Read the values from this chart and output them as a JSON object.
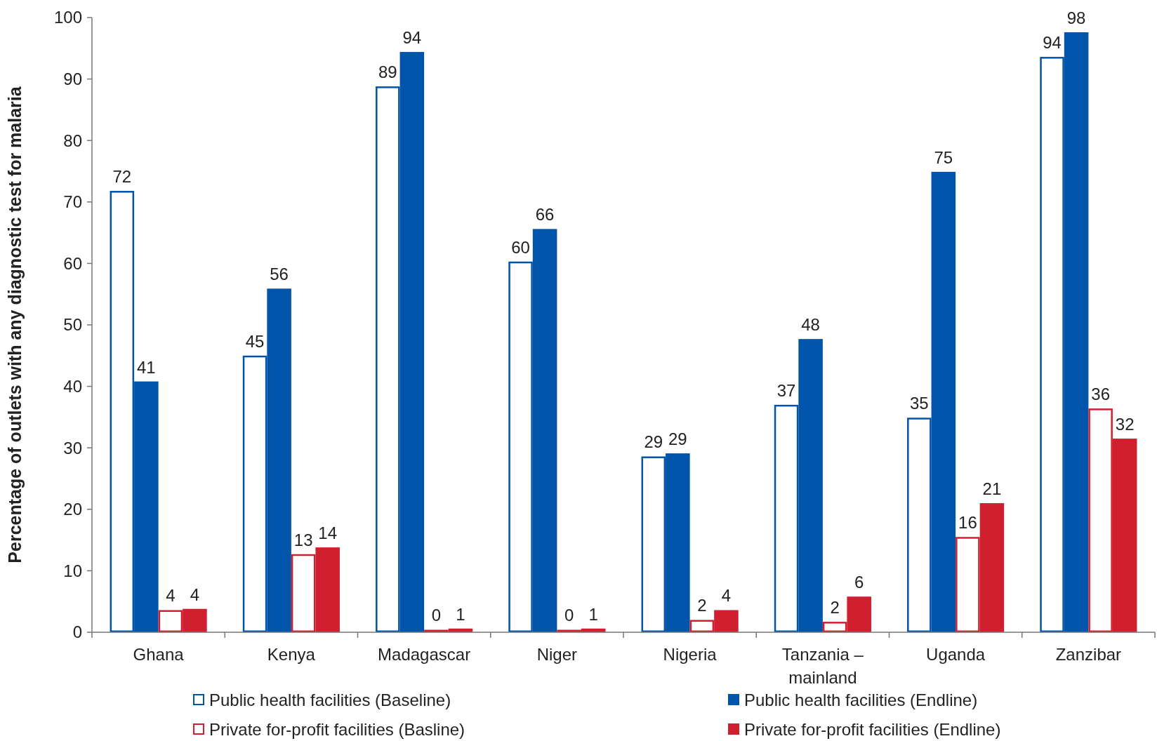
{
  "chart_data": {
    "type": "bar",
    "ylabel": "Percentage of outlets with any diagnostic test for malaria",
    "categories": [
      "Ghana",
      "Kenya",
      "Madagascar",
      "Niger",
      "Nigeria",
      "Tanzania – mainland",
      "Uganda",
      "Zanzibar"
    ],
    "series": [
      {
        "name": "Public health facilities (Baseline)",
        "color": "#0055aa",
        "values": [
          71.8,
          45.0,
          88.8,
          60.3,
          28.6,
          37.0,
          34.9,
          93.6
        ],
        "value_labels": [
          "72",
          "45",
          "89",
          "60",
          "29",
          "37",
          "35",
          "94"
        ]
      },
      {
        "name": "Public health facilities (Endline)",
        "color": "#0055aa",
        "values": [
          40.8,
          55.9,
          94.4,
          65.6,
          29.1,
          47.7,
          74.9,
          97.6
        ],
        "value_labels": [
          "41",
          "56",
          "94",
          "66",
          "29",
          "48",
          "75",
          "98"
        ]
      },
      {
        "name": "Private for-profit facilities (Basline)",
        "color": "#d0202f",
        "values": [
          3.6,
          12.7,
          0.4,
          0.4,
          2.0,
          1.7,
          15.5,
          36.4
        ],
        "value_labels": [
          "4",
          "13",
          "0",
          "0",
          "2",
          "2",
          "16",
          "36"
        ]
      },
      {
        "name": "Private for-profit facilities (Endline)",
        "color": "#d0202f",
        "values": [
          3.8,
          13.8,
          0.6,
          0.6,
          3.6,
          5.8,
          21.0,
          31.5
        ],
        "value_labels": [
          "4",
          "14",
          "1",
          "1",
          "4",
          "6",
          "21",
          "32"
        ]
      }
    ],
    "ylim": [
      0,
      100
    ],
    "yticks": [
      0,
      10,
      20,
      30,
      40,
      50,
      60,
      70,
      80,
      90,
      100
    ],
    "grid": false,
    "legend": "bottom"
  }
}
